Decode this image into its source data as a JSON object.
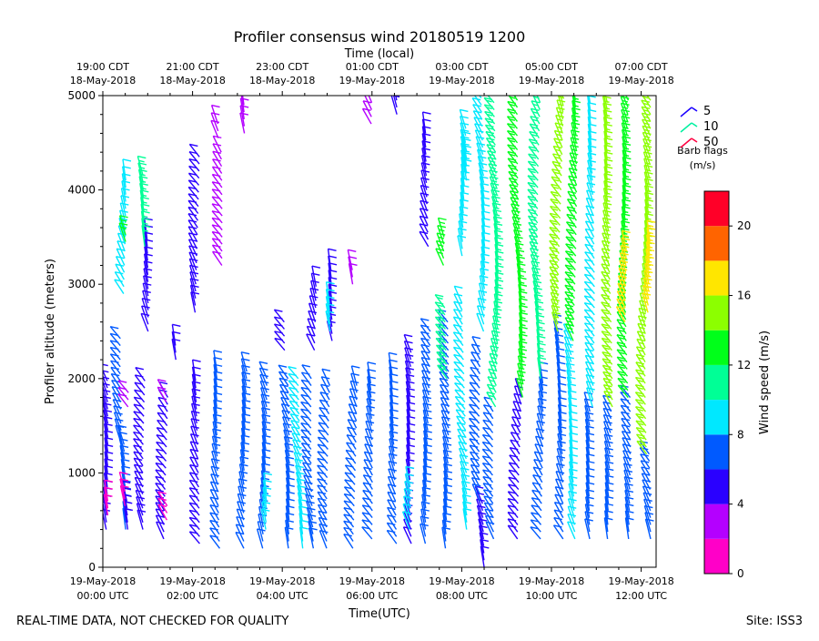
{
  "chart_data": {
    "type": "wind-barb-profile",
    "title": "Profiler consensus wind 20180519 1200",
    "top_axis_label": "Time (local)",
    "xlabel": "Time(UTC)",
    "ylabel": "Profiler altitude (meters)",
    "ylim": [
      0,
      5000
    ],
    "xlim_hours_utc": [
      0,
      12.333
    ],
    "yticks": [
      0,
      1000,
      2000,
      3000,
      4000,
      5000
    ],
    "bottom_ticks": [
      {
        "hour": 0,
        "date": "19-May-2018",
        "time": "00:00 UTC"
      },
      {
        "hour": 2,
        "date": "19-May-2018",
        "time": "02:00 UTC"
      },
      {
        "hour": 4,
        "date": "19-May-2018",
        "time": "04:00 UTC"
      },
      {
        "hour": 6,
        "date": "19-May-2018",
        "time": "06:00 UTC"
      },
      {
        "hour": 8,
        "date": "19-May-2018",
        "time": "08:00 UTC"
      },
      {
        "hour": 10,
        "date": "19-May-2018",
        "time": "10:00 UTC"
      },
      {
        "hour": 12,
        "date": "19-May-2018",
        "time": "12:00 UTC"
      }
    ],
    "top_ticks": [
      {
        "hour": 0,
        "time": "19:00 CDT",
        "date": "18-May-2018"
      },
      {
        "hour": 2,
        "time": "21:00 CDT",
        "date": "18-May-2018"
      },
      {
        "hour": 4,
        "time": "23:00 CDT",
        "date": "18-May-2018"
      },
      {
        "hour": 6,
        "time": "01:00 CDT",
        "date": "19-May-2018"
      },
      {
        "hour": 8,
        "time": "03:00 CDT",
        "date": "19-May-2018"
      },
      {
        "hour": 10,
        "time": "05:00 CDT",
        "date": "19-May-2018"
      },
      {
        "hour": 12,
        "time": "07:00 CDT",
        "date": "19-May-2018"
      }
    ],
    "barb_legend": {
      "entries": [
        {
          "label": "5",
          "color": "#1a00ff"
        },
        {
          "label": "10",
          "color": "#00f0a0"
        },
        {
          "label": "50",
          "color": "#ff0040"
        }
      ],
      "title": "Barb flags",
      "units": "(m/s)"
    },
    "colorbar": {
      "label": "Wind speed (m/s)",
      "ticks": [
        0,
        4,
        8,
        12,
        16,
        20
      ],
      "range": [
        0,
        22
      ],
      "bins": [
        {
          "from": 0,
          "to": 2,
          "color": "#ff00c8"
        },
        {
          "from": 2,
          "to": 4,
          "color": "#b400ff"
        },
        {
          "from": 4,
          "to": 6,
          "color": "#2a00ff"
        },
        {
          "from": 6,
          "to": 8,
          "color": "#005aff"
        },
        {
          "from": 8,
          "to": 10,
          "color": "#00e8ff"
        },
        {
          "from": 10,
          "to": 12,
          "color": "#00ff96"
        },
        {
          "from": 12,
          "to": 14,
          "color": "#00ff1a"
        },
        {
          "from": 14,
          "to": 16,
          "color": "#8cff00"
        },
        {
          "from": 16,
          "to": 18,
          "color": "#ffe600"
        },
        {
          "from": 18,
          "to": 20,
          "color": "#ff6400"
        },
        {
          "from": 20,
          "to": 22,
          "color": "#ff0028"
        }
      ]
    },
    "profile_columns": [
      {
        "hour": 0.05,
        "segments": [
          [
            400,
            2000,
            5.5
          ],
          [
            550,
            750,
            1.5
          ]
        ]
      },
      {
        "hour": 0.45,
        "segments": [
          [
            400,
            1300,
            7
          ],
          [
            1300,
            2450,
            7
          ],
          [
            2900,
            4150,
            9
          ],
          [
            3450,
            3550,
            12
          ]
        ]
      },
      {
        "hour": 0.55,
        "segments": [
          [
            400,
            750,
            4
          ],
          [
            650,
            800,
            1.5
          ],
          [
            1700,
            1850,
            2.5
          ]
        ]
      },
      {
        "hour": 0.95,
        "segments": [
          [
            400,
            2000,
            4.5
          ],
          [
            2500,
            3500,
            5
          ],
          [
            3400,
            4200,
            11
          ]
        ]
      },
      {
        "hour": 1.4,
        "segments": [
          [
            300,
            1850,
            5
          ],
          [
            500,
            700,
            1.5
          ],
          [
            1750,
            1850,
            3
          ]
        ]
      },
      {
        "hour": 1.6,
        "segments": [
          [
            2200,
            2400,
            4
          ]
        ]
      },
      {
        "hour": 2.1,
        "segments": [
          [
            250,
            2000,
            4.5
          ],
          [
            2700,
            4350,
            4.5
          ]
        ]
      },
      {
        "hour": 2.6,
        "segments": [
          [
            200,
            2100,
            6
          ],
          [
            3200,
            4400,
            3
          ],
          [
            4550,
            4750,
            3
          ]
        ]
      },
      {
        "hour": 3.2,
        "segments": [
          [
            200,
            2100,
            7
          ],
          [
            4600,
            4900,
            2.5
          ]
        ]
      },
      {
        "hour": 3.6,
        "segments": [
          [
            200,
            2000,
            6
          ],
          [
            400,
            800,
            9
          ]
        ]
      },
      {
        "hour": 4.1,
        "segments": [
          [
            200,
            2050,
            6
          ],
          [
            2300,
            2650,
            4
          ]
        ]
      },
      {
        "hour": 4.4,
        "segments": [
          [
            200,
            2000,
            8
          ]
        ]
      },
      {
        "hour": 4.7,
        "segments": [
          [
            200,
            2050,
            6
          ],
          [
            2300,
            3000,
            5
          ]
        ]
      },
      {
        "hour": 5.05,
        "segments": [
          [
            200,
            1950,
            6
          ],
          [
            2400,
            3200,
            5
          ],
          [
            2500,
            2800,
            9
          ]
        ]
      },
      {
        "hour": 5.6,
        "segments": [
          [
            200,
            1950,
            6
          ],
          [
            3000,
            3200,
            3
          ]
        ]
      },
      {
        "hour": 5.95,
        "segments": [
          [
            300,
            1950,
            7
          ],
          [
            4700,
            5000,
            3
          ]
        ]
      },
      {
        "hour": 6.5,
        "segments": [
          [
            250,
            2100,
            6
          ],
          [
            4800,
            5000,
            5
          ]
        ]
      },
      {
        "hour": 6.9,
        "segments": [
          [
            250,
            2300,
            5
          ],
          [
            400,
            900,
            9
          ]
        ]
      },
      {
        "hour": 7.25,
        "segments": [
          [
            250,
            2500,
            6
          ],
          [
            3400,
            4600,
            4.5
          ]
        ]
      },
      {
        "hour": 7.65,
        "segments": [
          [
            200,
            2600,
            7
          ],
          [
            2000,
            2800,
            11
          ],
          [
            3200,
            3500,
            12
          ]
        ]
      },
      {
        "hour": 8.05,
        "segments": [
          [
            400,
            2800,
            9
          ],
          [
            3300,
            4700,
            9
          ],
          [
            4100,
            4400,
            8
          ]
        ]
      },
      {
        "hour": 8.45,
        "segments": [
          [
            0,
            700,
            5.5
          ],
          [
            700,
            2300,
            6
          ],
          [
            2500,
            5000,
            9
          ]
        ]
      },
      {
        "hour": 8.75,
        "segments": [
          [
            300,
            1700,
            6
          ],
          [
            1700,
            5000,
            11
          ]
        ]
      },
      {
        "hour": 9.3,
        "segments": [
          [
            300,
            1800,
            5
          ],
          [
            1800,
            5000,
            13
          ]
        ]
      },
      {
        "hour": 9.75,
        "segments": [
          [
            300,
            2000,
            7
          ],
          [
            2000,
            5000,
            10
          ]
        ]
      },
      {
        "hour": 10.2,
        "segments": [
          [
            300,
            2500,
            7
          ],
          [
            2500,
            5000,
            14
          ]
        ]
      },
      {
        "hour": 10.5,
        "segments": [
          [
            300,
            2400,
            8
          ],
          [
            2400,
            5000,
            12
          ]
        ]
      },
      {
        "hour": 10.9,
        "segments": [
          [
            300,
            1700,
            6
          ],
          [
            1700,
            5000,
            9
          ]
        ]
      },
      {
        "hour": 11.3,
        "segments": [
          [
            300,
            1700,
            7
          ],
          [
            1700,
            5000,
            14
          ]
        ]
      },
      {
        "hour": 11.7,
        "segments": [
          [
            300,
            1800,
            7
          ],
          [
            1800,
            5000,
            13
          ],
          [
            2600,
            3400,
            17
          ]
        ]
      },
      {
        "hour": 12.15,
        "segments": [
          [
            300,
            1200,
            6
          ],
          [
            1200,
            5000,
            14
          ],
          [
            2700,
            3500,
            16
          ]
        ]
      }
    ]
  },
  "footer": {
    "left_note": "REAL-TIME DATA, NOT CHECKED FOR QUALITY",
    "site": "Site: ISS3"
  }
}
